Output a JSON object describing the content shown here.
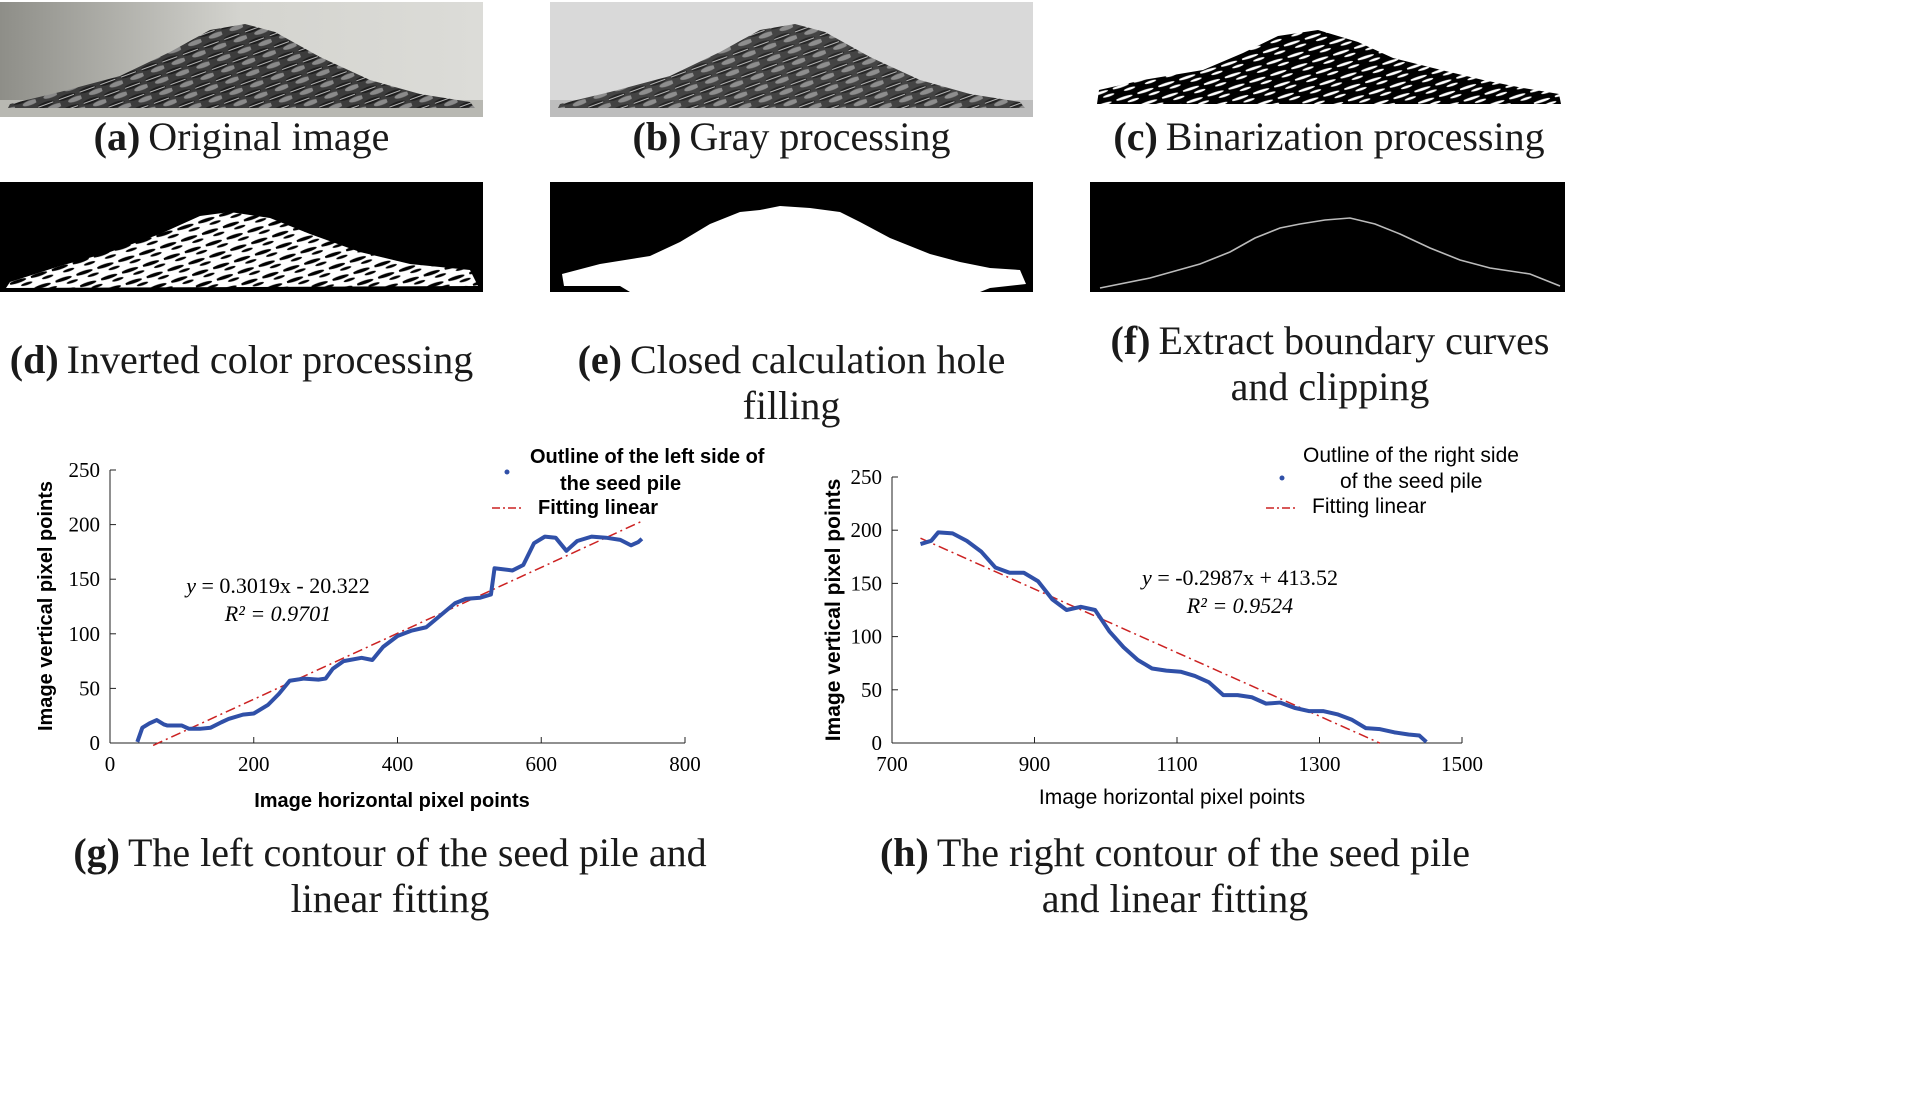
{
  "panels": {
    "a": {
      "letter": "(a)",
      "caption": "Original image"
    },
    "b": {
      "letter": "(b)",
      "caption": "Gray processing"
    },
    "c": {
      "letter": "(c)",
      "caption": "Binarization processing"
    },
    "d": {
      "letter": "(d)",
      "caption": "Inverted color processing"
    },
    "e": {
      "letter": "(e)",
      "caption": "Closed calculation hole filling"
    },
    "f": {
      "letter": "(f)",
      "caption": "Extract boundary curves and clipping"
    },
    "g": {
      "letter": "(g)",
      "caption": "The left contour of the seed pile and linear fitting"
    },
    "h": {
      "letter": "(h)",
      "caption": "The right contour of the seed pile and linear fitting"
    }
  },
  "colors": {
    "data": "#3050a8",
    "fit": "#cc2222"
  },
  "chart_data": [
    {
      "type": "line",
      "xlabel": "Image horizontal pixel points",
      "ylabel": "Image vertical pixel points",
      "xlim": [
        0,
        800
      ],
      "ylim": [
        0,
        250
      ],
      "xticks": [
        "0",
        "200",
        "400",
        "600",
        "800"
      ],
      "yticks": [
        "0",
        "50",
        "100",
        "150",
        "200",
        "250"
      ],
      "legend": {
        "data": "Outline of the left side of the seed pile",
        "data_lines": [
          "Outline of the left side of",
          "the seed pile"
        ],
        "fit": "Fitting  linear",
        "placement": "top-right"
      },
      "equation": {
        "prefix": "y",
        "rest": " = 0.3019x - 20.322",
        "r2": "R² = 0.9701"
      },
      "fit": {
        "slope": 0.3019,
        "intercept": -20.322,
        "x_range": [
          60,
          740
        ]
      },
      "series": [
        {
          "name": "Outline of the left side of the seed pile",
          "x": [
            38,
            45,
            55,
            65,
            75,
            80,
            100,
            110,
            125,
            140,
            155,
            165,
            185,
            200,
            220,
            235,
            250,
            270,
            290,
            300,
            310,
            325,
            350,
            365,
            380,
            400,
            420,
            440,
            460,
            480,
            495,
            515,
            530,
            535,
            560,
            575,
            590,
            605,
            620,
            635,
            650,
            670,
            690,
            710,
            725,
            735,
            740
          ],
          "y": [
            1,
            14,
            18,
            21,
            17,
            16,
            16,
            13,
            13,
            14,
            19,
            22,
            26,
            27,
            35,
            45,
            57,
            59,
            58,
            59,
            68,
            75,
            78,
            76,
            88,
            98,
            103,
            106,
            117,
            128,
            132,
            133,
            136,
            160,
            158,
            163,
            183,
            189,
            188,
            176,
            185,
            189,
            188,
            186,
            181,
            184,
            187
          ]
        }
      ]
    },
    {
      "type": "line",
      "xlabel": "Image horizontal pixel points",
      "ylabel": "Image vertical pixel points",
      "xlim": [
        700,
        1500
      ],
      "ylim": [
        0,
        250
      ],
      "xticks": [
        "700",
        "900",
        "1100",
        "1300",
        "1500"
      ],
      "yticks": [
        "0",
        "50",
        "100",
        "150",
        "200",
        "250"
      ],
      "legend": {
        "data": "Outline of the right side of the seed pile",
        "data_lines": [
          "Outline of the right side",
          "of the seed pile"
        ],
        "fit": "Fitting  linear",
        "placement": "top-right"
      },
      "equation": {
        "prefix": "y",
        "rest": " = -0.2987x + 413.52",
        "r2": "R² = 0.9524"
      },
      "fit": {
        "slope": -0.2987,
        "intercept": 413.52,
        "x_range": [
          740,
          1385
        ]
      },
      "series": [
        {
          "name": "Outline of the right side of the seed pile",
          "x": [
            740,
            755,
            765,
            785,
            805,
            825,
            845,
            865,
            885,
            905,
            925,
            945,
            965,
            985,
            1005,
            1025,
            1045,
            1065,
            1085,
            1105,
            1125,
            1145,
            1165,
            1185,
            1205,
            1225,
            1245,
            1265,
            1285,
            1305,
            1325,
            1345,
            1365,
            1385,
            1405,
            1425,
            1440,
            1450
          ],
          "y": [
            187,
            190,
            198,
            197,
            190,
            180,
            165,
            160,
            160,
            152,
            135,
            125,
            128,
            125,
            105,
            90,
            78,
            70,
            68,
            67,
            63,
            57,
            45,
            45,
            43,
            37,
            38,
            33,
            30,
            30,
            27,
            22,
            14,
            13,
            10,
            8,
            7,
            1
          ]
        }
      ]
    }
  ]
}
